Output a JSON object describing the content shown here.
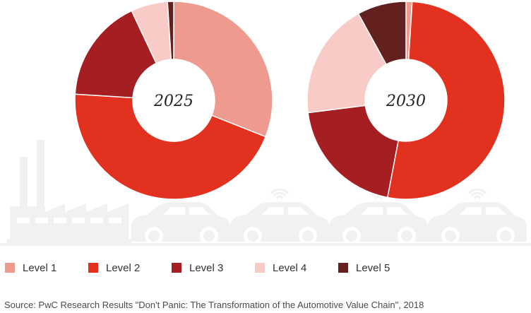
{
  "chart_data": [
    {
      "type": "donut",
      "center_label": "2025",
      "categories": [
        "Level 1",
        "Level 2",
        "Level 3",
        "Level 4",
        "Level 5"
      ],
      "values": [
        31,
        45,
        17,
        6,
        1
      ]
    },
    {
      "type": "donut",
      "center_label": "2030",
      "categories": [
        "Level 1",
        "Level 2",
        "Level 3",
        "Level 4",
        "Level 5"
      ],
      "values": [
        1,
        52,
        20,
        19,
        8
      ]
    }
  ],
  "colors": {
    "Level 1": "#ef9a8e",
    "Level 2": "#e2311e",
    "Level 3": "#a41e22",
    "Level 4": "#f8cbc6",
    "Level 5": "#62201f",
    "background_illustration": "#f1f1f1"
  },
  "legend": {
    "placement": "bottom",
    "items": [
      "Level 1",
      "Level 2",
      "Level 3",
      "Level 4",
      "Level 5"
    ]
  },
  "background_icons": [
    "factory-icon",
    "car-icon",
    "car-icon",
    "car-icon",
    "car-icon",
    "wifi-signal-icon"
  ],
  "source": "Source: PwC Research Results \"Don't Panic: The Transformation of the Automotive Value Chain\", 2018"
}
